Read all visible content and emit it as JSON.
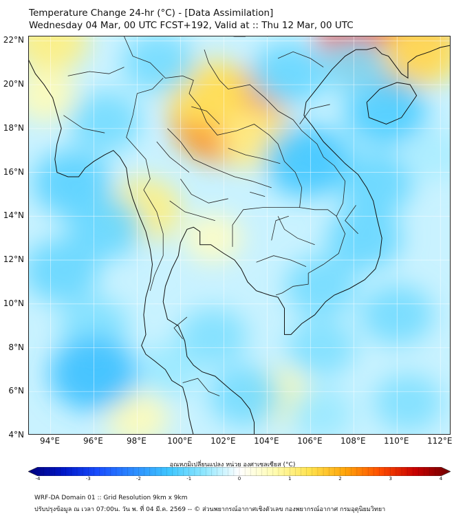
{
  "header": {
    "title_line1": "Temperature Change 24-hr (°C) - [Data Assimilation]",
    "title_line2": "Wednesday 04 Mar, 00 UTC FCST+192, Valid at :: Thu 12 Mar, 00 UTC"
  },
  "map": {
    "lon_range": [
      93,
      112.5
    ],
    "lat_range": [
      4,
      22.2
    ],
    "lat_labels": [
      {
        "value": 22,
        "text": "22°N"
      },
      {
        "value": 20,
        "text": "20°N"
      },
      {
        "value": 18,
        "text": "18°N"
      },
      {
        "value": 16,
        "text": "16°N"
      },
      {
        "value": 14,
        "text": "14°N"
      },
      {
        "value": 12,
        "text": "12°N"
      },
      {
        "value": 10,
        "text": "10°N"
      },
      {
        "value": 8,
        "text": "8°N"
      },
      {
        "value": 6,
        "text": "6°N"
      },
      {
        "value": 4,
        "text": "4°N"
      }
    ],
    "lon_labels": [
      {
        "value": 94,
        "text": "94°E"
      },
      {
        "value": 96,
        "text": "96°E"
      },
      {
        "value": 98,
        "text": "98°E"
      },
      {
        "value": 100,
        "text": "100°E"
      },
      {
        "value": 102,
        "text": "102°E"
      },
      {
        "value": 104,
        "text": "104°E"
      },
      {
        "value": 106,
        "text": "106°E"
      },
      {
        "value": 108,
        "text": "108°E"
      },
      {
        "value": 110,
        "text": "110°E"
      },
      {
        "value": 112,
        "text": "112°E"
      }
    ],
    "field_blobs": [
      {
        "lon": 102.2,
        "lat": 18.6,
        "value": 2.2
      },
      {
        "lon": 101.2,
        "lat": 19.6,
        "value": 1.2
      },
      {
        "lon": 103.5,
        "lat": 17.5,
        "value": 0.9
      },
      {
        "lon": 109.5,
        "lat": 22.2,
        "value": 2.8
      },
      {
        "lon": 111.2,
        "lat": 21.5,
        "value": 1.2
      },
      {
        "lon": 94.0,
        "lat": 22.0,
        "value": 1.0
      },
      {
        "lon": 98.3,
        "lat": 14.3,
        "value": 1.0
      },
      {
        "lon": 93.8,
        "lat": 19.5,
        "value": 0.6
      },
      {
        "lon": 104.5,
        "lat": 5.8,
        "value": 0.7
      },
      {
        "lon": 98.0,
        "lat": 4.8,
        "value": 0.6
      },
      {
        "lon": 101.5,
        "lat": 13.0,
        "value": 0.5
      },
      {
        "lon": 107.0,
        "lat": 17.0,
        "value": -0.6
      },
      {
        "lon": 109.5,
        "lat": 18.8,
        "value": -1.2
      },
      {
        "lon": 105.8,
        "lat": 16.5,
        "value": -1.3
      },
      {
        "lon": 109.0,
        "lat": 15.5,
        "value": -1.0
      },
      {
        "lon": 108.5,
        "lat": 13.0,
        "value": -1.0
      },
      {
        "lon": 106.5,
        "lat": 10.8,
        "value": -0.9
      },
      {
        "lon": 96.5,
        "lat": 18.3,
        "value": -0.9
      },
      {
        "lon": 95.0,
        "lat": 15.5,
        "value": -1.1
      },
      {
        "lon": 96.5,
        "lat": 13.5,
        "value": -1.0
      },
      {
        "lon": 94.5,
        "lat": 11.5,
        "value": -1.0
      },
      {
        "lon": 96.0,
        "lat": 9.0,
        "value": -0.8
      },
      {
        "lon": 96.0,
        "lat": 6.8,
        "value": -1.4
      },
      {
        "lon": 101.5,
        "lat": 8.5,
        "value": -0.8
      },
      {
        "lon": 105.0,
        "lat": 20.5,
        "value": -1.0
      },
      {
        "lon": 99.0,
        "lat": 21.0,
        "value": -0.9
      },
      {
        "lon": 108.0,
        "lat": 20.8,
        "value": -0.8
      },
      {
        "lon": 106.5,
        "lat": 8.0,
        "value": -0.8
      },
      {
        "lon": 110.0,
        "lat": 9.5,
        "value": -0.9
      },
      {
        "lon": 110.5,
        "lat": 5.5,
        "value": -0.8
      },
      {
        "lon": 106.5,
        "lat": 5.0,
        "value": -0.6
      },
      {
        "lon": 103.0,
        "lat": 5.8,
        "value": -0.9
      },
      {
        "lon": 99.5,
        "lat": 7.0,
        "value": -0.6
      },
      {
        "lon": 111.8,
        "lat": 16.8,
        "value": -0.5
      }
    ],
    "coastline": [
      [
        [
          92.9,
          21.3
        ],
        [
          93.3,
          20.5
        ],
        [
          93.7,
          20.0
        ],
        [
          94.1,
          19.4
        ],
        [
          94.3,
          18.7
        ],
        [
          94.5,
          18.0
        ],
        [
          94.3,
          17.3
        ],
        [
          94.2,
          16.6
        ],
        [
          94.3,
          16.0
        ],
        [
          94.8,
          15.8
        ],
        [
          95.3,
          15.8
        ],
        [
          95.6,
          16.2
        ],
        [
          96.0,
          16.5
        ],
        [
          96.5,
          16.8
        ],
        [
          96.9,
          17.0
        ],
        [
          97.2,
          16.7
        ],
        [
          97.5,
          16.2
        ],
        [
          97.6,
          15.5
        ],
        [
          97.8,
          14.8
        ],
        [
          98.1,
          14.0
        ],
        [
          98.4,
          13.3
        ],
        [
          98.6,
          12.5
        ],
        [
          98.7,
          11.8
        ],
        [
          98.6,
          11.0
        ],
        [
          98.4,
          10.3
        ],
        [
          98.3,
          9.5
        ],
        [
          98.4,
          8.6
        ],
        [
          98.2,
          8.1
        ],
        [
          98.4,
          7.7
        ],
        [
          98.8,
          7.4
        ],
        [
          99.3,
          7.0
        ],
        [
          99.6,
          6.5
        ],
        [
          100.1,
          6.2
        ],
        [
          100.3,
          5.5
        ],
        [
          100.4,
          4.8
        ],
        [
          100.6,
          4.0
        ]
      ],
      [
        [
          103.4,
          4.0
        ],
        [
          103.4,
          4.6
        ],
        [
          103.2,
          5.2
        ],
        [
          102.8,
          5.7
        ],
        [
          102.3,
          6.1
        ],
        [
          101.6,
          6.7
        ],
        [
          101.0,
          6.9
        ],
        [
          100.6,
          7.2
        ],
        [
          100.3,
          7.6
        ],
        [
          100.2,
          8.3
        ],
        [
          99.9,
          9.0
        ],
        [
          99.4,
          9.3
        ],
        [
          99.2,
          10.1
        ],
        [
          99.3,
          10.8
        ],
        [
          99.6,
          11.6
        ],
        [
          99.9,
          12.2
        ],
        [
          100.0,
          12.8
        ],
        [
          100.3,
          13.4
        ],
        [
          100.6,
          13.5
        ],
        [
          100.9,
          13.3
        ],
        [
          100.9,
          12.7
        ],
        [
          101.4,
          12.7
        ],
        [
          102.0,
          12.3
        ],
        [
          102.5,
          12.0
        ],
        [
          102.8,
          11.6
        ],
        [
          103.1,
          11.0
        ],
        [
          103.5,
          10.6
        ],
        [
          104.1,
          10.4
        ],
        [
          104.5,
          10.3
        ],
        [
          104.8,
          9.8
        ],
        [
          104.8,
          9.2
        ],
        [
          104.8,
          8.6
        ],
        [
          105.1,
          8.6
        ],
        [
          105.6,
          9.1
        ],
        [
          106.2,
          9.5
        ],
        [
          106.7,
          10.1
        ],
        [
          107.1,
          10.4
        ],
        [
          107.8,
          10.7
        ],
        [
          108.5,
          11.1
        ],
        [
          109.0,
          11.6
        ],
        [
          109.2,
          12.2
        ],
        [
          109.3,
          13.0
        ],
        [
          109.1,
          13.8
        ],
        [
          108.9,
          14.7
        ],
        [
          108.6,
          15.3
        ],
        [
          108.2,
          15.9
        ],
        [
          107.6,
          16.4
        ],
        [
          107.1,
          16.9
        ],
        [
          106.6,
          17.4
        ],
        [
          106.1,
          18.1
        ],
        [
          105.7,
          18.6
        ],
        [
          105.8,
          19.2
        ],
        [
          106.2,
          19.7
        ],
        [
          106.6,
          20.2
        ],
        [
          107.0,
          20.7
        ],
        [
          107.6,
          21.3
        ],
        [
          108.1,
          21.6
        ],
        [
          108.6,
          21.6
        ],
        [
          109.0,
          21.7
        ],
        [
          109.3,
          21.4
        ],
        [
          109.6,
          21.3
        ],
        [
          109.9,
          20.9
        ],
        [
          110.2,
          20.5
        ],
        [
          110.5,
          20.3
        ],
        [
          110.5,
          21.0
        ],
        [
          110.9,
          21.3
        ],
        [
          111.5,
          21.5
        ],
        [
          112.0,
          21.7
        ],
        [
          112.5,
          21.8
        ]
      ],
      [
        [
          108.6,
          19.2
        ],
        [
          108.7,
          18.5
        ],
        [
          109.5,
          18.2
        ],
        [
          110.2,
          18.5
        ],
        [
          110.9,
          19.5
        ],
        [
          110.6,
          20.0
        ],
        [
          110.0,
          20.1
        ],
        [
          109.2,
          19.8
        ],
        [
          108.6,
          19.2
        ]
      ]
    ],
    "borders": [
      [
        [
          97.4,
          22.2
        ],
        [
          97.8,
          21.3
        ],
        [
          98.6,
          21.0
        ],
        [
          99.3,
          20.3
        ],
        [
          100.1,
          20.4
        ],
        [
          100.6,
          20.2
        ],
        [
          100.4,
          19.6
        ],
        [
          100.9,
          19.0
        ],
        [
          101.2,
          18.3
        ],
        [
          101.7,
          17.7
        ],
        [
          102.6,
          17.9
        ],
        [
          103.4,
          18.2
        ],
        [
          104.1,
          17.7
        ],
        [
          104.5,
          17.3
        ],
        [
          104.8,
          16.5
        ],
        [
          105.3,
          16.0
        ],
        [
          105.6,
          15.3
        ],
        [
          105.5,
          14.4
        ],
        [
          104.8,
          14.4
        ],
        [
          103.8,
          14.4
        ],
        [
          102.9,
          14.3
        ],
        [
          102.4,
          13.6
        ],
        [
          102.4,
          12.6
        ]
      ],
      [
        [
          99.2,
          20.3
        ],
        [
          98.7,
          19.8
        ],
        [
          98.0,
          19.6
        ],
        [
          97.8,
          18.6
        ],
        [
          97.5,
          17.6
        ],
        [
          98.4,
          16.6
        ],
        [
          98.6,
          15.7
        ],
        [
          98.3,
          15.2
        ],
        [
          98.9,
          14.2
        ],
        [
          99.2,
          13.2
        ],
        [
          99.2,
          12.2
        ],
        [
          98.8,
          11.3
        ],
        [
          98.6,
          10.6
        ]
      ],
      [
        [
          101.1,
          21.6
        ],
        [
          101.3,
          21.0
        ],
        [
          101.8,
          20.2
        ],
        [
          102.2,
          19.8
        ],
        [
          103.2,
          20.0
        ],
        [
          103.9,
          19.4
        ],
        [
          104.5,
          18.8
        ],
        [
          105.2,
          18.4
        ],
        [
          105.6,
          17.9
        ],
        [
          106.3,
          17.3
        ],
        [
          106.6,
          16.7
        ],
        [
          107.1,
          16.3
        ],
        [
          107.6,
          15.6
        ],
        [
          107.5,
          14.6
        ],
        [
          107.2,
          14.0
        ]
      ],
      [
        [
          107.2,
          14.0
        ],
        [
          107.6,
          13.2
        ],
        [
          107.3,
          12.3
        ],
        [
          106.6,
          11.8
        ],
        [
          105.9,
          11.4
        ],
        [
          105.9,
          10.9
        ],
        [
          105.2,
          10.8
        ],
        [
          104.7,
          10.5
        ],
        [
          104.4,
          10.4
        ]
      ],
      [
        [
          105.5,
          14.4
        ],
        [
          106.2,
          14.3
        ],
        [
          106.8,
          14.3
        ],
        [
          107.2,
          14.0
        ]
      ],
      [
        [
          103.0,
          22.2
        ],
        [
          102.5,
          22.2
        ],
        [
          101.8,
          22.3
        ]
      ],
      [
        [
          104.0,
          22.2
        ],
        [
          104.8,
          22.5
        ],
        [
          105.5,
          22.8
        ]
      ],
      [
        [
          100.1,
          6.4
        ],
        [
          100.8,
          6.6
        ],
        [
          101.3,
          6.0
        ],
        [
          101.8,
          5.8
        ]
      ],
      [
        [
          104.2,
          12.9
        ],
        [
          104.4,
          13.8
        ],
        [
          105.0,
          14.0
        ]
      ],
      [
        [
          99.4,
          18.0
        ],
        [
          100.0,
          17.4
        ],
        [
          100.6,
          16.6
        ],
        [
          101.5,
          16.2
        ],
        [
          102.5,
          15.8
        ],
        [
          103.3,
          15.6
        ],
        [
          104.2,
          15.3
        ]
      ],
      [
        [
          100.0,
          15.7
        ],
        [
          100.5,
          15.0
        ],
        [
          101.3,
          14.6
        ],
        [
          102.2,
          14.8
        ]
      ],
      [
        [
          99.5,
          14.7
        ],
        [
          100.2,
          14.2
        ],
        [
          100.9,
          14.0
        ],
        [
          101.6,
          13.8
        ]
      ],
      [
        [
          98.9,
          17.4
        ],
        [
          99.5,
          16.7
        ],
        [
          100.4,
          16.0
        ]
      ],
      [
        [
          100.5,
          19.0
        ],
        [
          101.2,
          18.8
        ],
        [
          101.8,
          18.2
        ]
      ],
      [
        [
          102.2,
          17.1
        ],
        [
          103.0,
          16.8
        ],
        [
          103.9,
          16.6
        ],
        [
          104.6,
          16.4
        ]
      ],
      [
        [
          103.2,
          15.1
        ],
        [
          103.9,
          14.9
        ]
      ],
      [
        [
          104.5,
          14.0
        ],
        [
          104.8,
          13.4
        ],
        [
          105.4,
          13.0
        ],
        [
          106.2,
          12.7
        ]
      ],
      [
        [
          103.5,
          11.9
        ],
        [
          104.3,
          12.2
        ],
        [
          105.1,
          12.0
        ],
        [
          105.8,
          11.7
        ]
      ],
      [
        [
          94.6,
          18.6
        ],
        [
          95.5,
          18.0
        ],
        [
          96.5,
          17.8
        ]
      ],
      [
        [
          94.8,
          20.4
        ],
        [
          95.8,
          20.6
        ],
        [
          96.7,
          20.5
        ],
        [
          97.4,
          20.8
        ]
      ],
      [
        [
          106.9,
          19.1
        ],
        [
          106.0,
          18.9
        ],
        [
          105.5,
          18.2
        ]
      ],
      [
        [
          104.5,
          21.2
        ],
        [
          105.2,
          21.5
        ],
        [
          106.0,
          21.2
        ],
        [
          106.6,
          20.8
        ]
      ],
      [
        [
          108.1,
          14.5
        ],
        [
          107.6,
          13.8
        ],
        [
          108.2,
          13.2
        ]
      ],
      [
        [
          100.3,
          9.4
        ],
        [
          99.7,
          8.9
        ],
        [
          100.1,
          8.4
        ]
      ]
    ]
  },
  "colorbar": {
    "title": "อุณหภูมิเปลี่ยนแปลง หน่วย องศาเซลเซียส (°C)",
    "min": -4,
    "max": 4,
    "ticks": [
      {
        "value": -4,
        "text": "-4"
      },
      {
        "value": -3,
        "text": "-3"
      },
      {
        "value": -2,
        "text": "-2"
      },
      {
        "value": -1,
        "text": "-1"
      },
      {
        "value": 0,
        "text": "0"
      },
      {
        "value": 1,
        "text": "1"
      },
      {
        "value": 2,
        "text": "2"
      },
      {
        "value": 3,
        "text": "3"
      },
      {
        "value": 4,
        "text": "4"
      }
    ],
    "colors": [
      "#00007a",
      "#0017c8",
      "#1a4fff",
      "#2c8cff",
      "#3ec6ff",
      "#8fe7ff",
      "#ffffff",
      "#fffcb0",
      "#ffe24d",
      "#ffa50a",
      "#ff4d00",
      "#c80000",
      "#6e0000"
    ]
  },
  "footer": {
    "line1": "WRF-DA Domain 01 :: Grid Resolution 9km x 9km",
    "line2": "ปรับปรุงข้อมูล ณ เวลา 07:00น. วัน พ. ที่ 04 มี.ค. 2569 -- © ส่วนพยากรณ์อากาศเชิงตัวเลข กองพยากรณ์อากาศ กรมอุตุนิยมวิทยา"
  }
}
